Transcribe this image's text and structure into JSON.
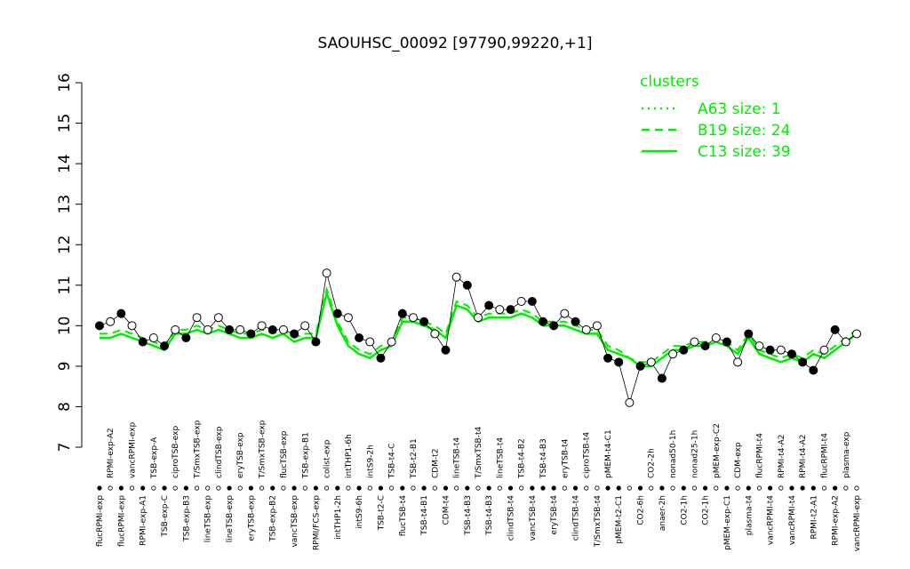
{
  "chart_data": {
    "type": "line",
    "title": "SAOUHSC_00092 [97790,99220,+1]",
    "ylim": [
      7,
      16
    ],
    "yticks": [
      7,
      8,
      9,
      10,
      11,
      12,
      13,
      14,
      15,
      16
    ],
    "legend_title": "clusters",
    "categories": [
      "flucRPMI-exp",
      "RPMI-exp-A2",
      "flucRPMI-exp",
      "vancRPMI-exp",
      "RPMI-exp-A1",
      "TSB-exp-A",
      "TSB-exp-C",
      "ciproTSB-exp",
      "TSB-exp-B3",
      "T/SmxTSB-exp",
      "lineTSB-exp",
      "clindTSB-exp",
      "lineTSB-exp",
      "eryTSB-exp",
      "eryTSB-exp",
      "T/SmxTSB-exp",
      "TSB-exp-B2",
      "flucTSB-exp",
      "vancTSB-exp",
      "TSB-exp-B1",
      "RPMI/FCS-exp",
      "colist-exp",
      "intTHP1-2h",
      "intTHP1-6h",
      "intS9-6h",
      "intS9-2h",
      "TSB-t2-C",
      "TSB-t4-C",
      "flucTSB-t4",
      "TSB-t2-B1",
      "TSB-t4-B1",
      "CDM-t2",
      "CDM-t4",
      "lineTSB-t4",
      "TSB-t4-B3",
      "T/SmxTSB-t4",
      "TSB-t4-B3",
      "lineTSB-t4",
      "clindTSB-t4",
      "TSB-t4-B2",
      "vancTSB-t4",
      "TSB-t4-B3",
      "eryTSB-t4",
      "eryTSB-t4",
      "clindTSB-t4",
      "ciproTSB-t4",
      "T/SmxTSB-t4",
      "pMEM-t4-C1",
      "pMEM-t2-C1",
      null,
      "CO2-6h",
      "CO2-2h",
      "anaer-2h",
      "nonad50-1h",
      "CO2-1h",
      "nonad25-1h",
      "CO2-1h",
      "pMEM-exp-C2",
      "pMEM-exp-C1",
      "CDM-exp",
      "plasma-t4",
      "flucRPMI-t4",
      "vancRPMI-t4",
      "RPMI-t4-A2",
      "vancRPMI-t4",
      "RPMI-t4-A2",
      "RPMI-t2-A1",
      "flucRPMI-t4",
      "RPMI-exp-A2",
      "plasma-exp",
      "vancRPMI-exp"
    ],
    "values": [
      10.0,
      10.1,
      10.3,
      10.0,
      9.6,
      9.7,
      9.5,
      9.9,
      9.7,
      10.2,
      9.9,
      10.2,
      9.9,
      9.9,
      9.8,
      10.0,
      9.9,
      9.9,
      9.8,
      10.0,
      9.6,
      11.3,
      10.3,
      10.2,
      9.7,
      9.6,
      9.2,
      9.6,
      10.3,
      10.2,
      10.1,
      9.8,
      9.4,
      11.2,
      11.0,
      10.2,
      10.5,
      10.4,
      10.4,
      10.6,
      10.6,
      10.1,
      10.0,
      10.3,
      10.1,
      9.9,
      10.0,
      9.2,
      9.1,
      8.1,
      9.0,
      9.1,
      8.7,
      9.3,
      9.4,
      9.6,
      9.5,
      9.7,
      9.6,
      9.1,
      9.8,
      9.5,
      9.4,
      9.4,
      9.3,
      9.1,
      8.9,
      9.4,
      9.9,
      9.6,
      9.8
    ],
    "marker_colors": [
      "black",
      "white",
      "black",
      "white",
      "black",
      "white",
      "black",
      "white",
      "black",
      "white",
      "white",
      "white",
      "black",
      "white",
      "black",
      "white",
      "black",
      "white",
      "black",
      "white",
      "black",
      "white",
      "black",
      "white",
      "black",
      "white",
      "black",
      "white",
      "black",
      "white",
      "black",
      "white",
      "black",
      "white",
      "black",
      "white",
      "black",
      "white",
      "black",
      "white",
      "black",
      "black",
      "black",
      "white",
      "black",
      "white",
      "white",
      "black",
      "black",
      "white",
      "black",
      "white",
      "black",
      "white",
      "black",
      "white",
      "black",
      "white",
      "black",
      "white",
      "black",
      "white",
      "black",
      "white",
      "black",
      "black",
      "black",
      "white",
      "black",
      "white",
      "white"
    ],
    "series": [
      {
        "name": "A63 size: 1",
        "color": "#00ee00",
        "dash": "dotted"
      },
      {
        "name": "B19 size: 24",
        "color": "#00ee00",
        "dash": "dashed",
        "values": [
          9.8,
          9.8,
          9.9,
          9.8,
          9.7,
          9.6,
          9.5,
          9.9,
          9.9,
          10.0,
          9.9,
          10.0,
          9.9,
          9.8,
          9.8,
          9.9,
          9.8,
          9.9,
          9.7,
          9.8,
          9.8,
          10.9,
          10.1,
          9.6,
          9.4,
          9.3,
          9.5,
          9.6,
          10.2,
          10.2,
          10.1,
          10.0,
          9.8,
          10.6,
          10.5,
          10.2,
          10.3,
          10.3,
          10.3,
          10.4,
          10.3,
          10.1,
          10.1,
          10.1,
          10.0,
          9.9,
          9.9,
          9.5,
          9.4,
          9.2,
          9.1,
          9.1,
          9.3,
          9.5,
          9.5,
          9.6,
          9.6,
          9.7,
          9.6,
          9.4,
          9.8,
          9.4,
          9.3,
          9.2,
          9.3,
          9.2,
          9.4,
          9.3,
          9.5,
          9.7,
          9.9
        ]
      },
      {
        "name": "C13 size: 39",
        "color": "#00ee00",
        "dash": "solid",
        "values": [
          9.7,
          9.7,
          9.8,
          9.7,
          9.6,
          9.5,
          9.4,
          9.8,
          9.8,
          9.9,
          9.8,
          9.9,
          9.8,
          9.7,
          9.7,
          9.8,
          9.7,
          9.8,
          9.6,
          9.7,
          9.7,
          10.8,
          10.0,
          9.5,
          9.3,
          9.2,
          9.4,
          9.5,
          10.1,
          10.1,
          10.0,
          9.9,
          9.7,
          10.5,
          10.4,
          10.1,
          10.2,
          10.2,
          10.2,
          10.3,
          10.2,
          10.0,
          10.0,
          10.0,
          9.9,
          9.8,
          9.8,
          9.4,
          9.3,
          9.2,
          9.0,
          9.0,
          9.2,
          9.4,
          9.4,
          9.5,
          9.5,
          9.6,
          9.5,
          9.3,
          9.7,
          9.3,
          9.2,
          9.1,
          9.2,
          9.1,
          9.3,
          9.2,
          9.4,
          9.6,
          9.8
        ]
      }
    ]
  }
}
